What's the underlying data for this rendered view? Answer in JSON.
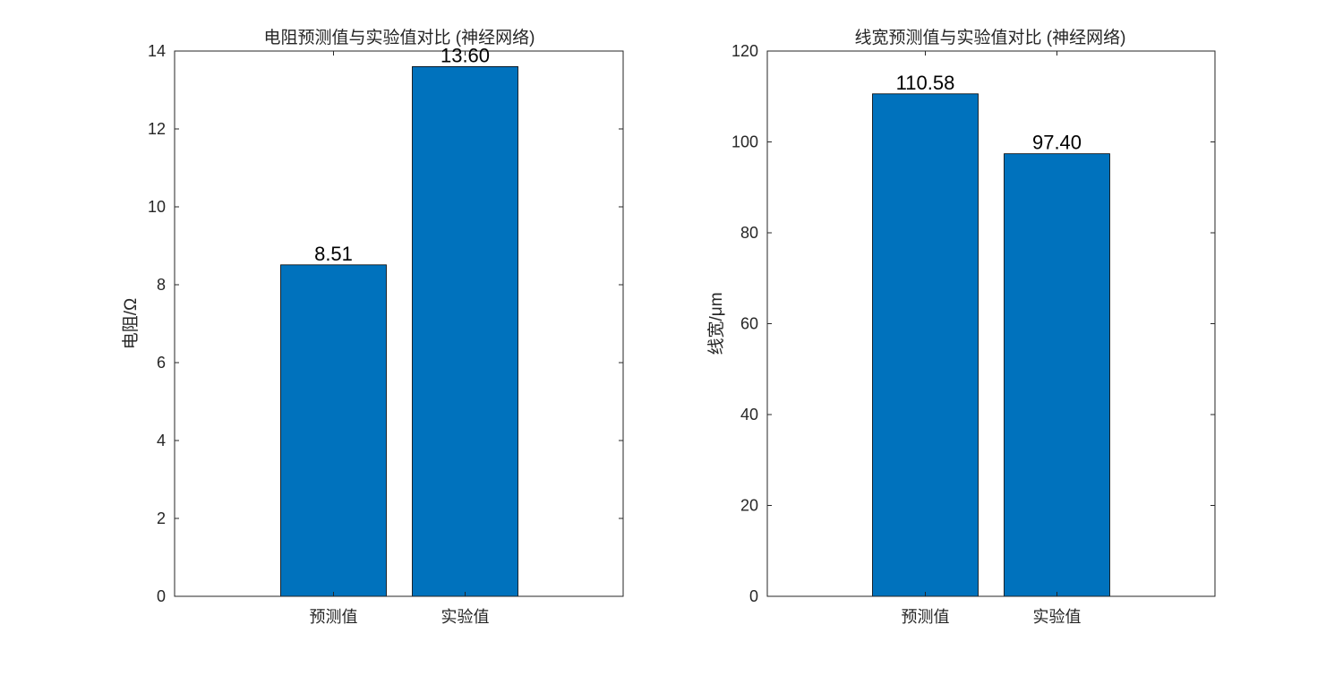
{
  "colors": {
    "bar": "#0072BD",
    "axis": "#262626",
    "background": "#ffffff"
  },
  "chart_data": [
    {
      "type": "bar",
      "title": "电阻预测值与实验值对比 (神经网络)",
      "xlabel": "",
      "ylabel": "电阻/Ω",
      "categories": [
        "预测值",
        "实验值"
      ],
      "values": [
        8.51,
        13.6
      ],
      "value_labels": [
        "8.51",
        "13.60"
      ],
      "ylim": [
        0,
        14
      ],
      "yticks": [
        0,
        2,
        4,
        6,
        8,
        10,
        12,
        14
      ],
      "ytick_labels": [
        "0",
        "2",
        "4",
        "6",
        "8",
        "10",
        "12",
        "14"
      ],
      "grid": false,
      "legend": "none"
    },
    {
      "type": "bar",
      "title": "线宽预测值与实验值对比 (神经网络)",
      "xlabel": "",
      "ylabel": "线宽/μm",
      "categories": [
        "预测值",
        "实验值"
      ],
      "values": [
        110.58,
        97.4
      ],
      "value_labels": [
        "110.58",
        "97.40"
      ],
      "ylim": [
        0,
        120
      ],
      "yticks": [
        0,
        20,
        40,
        60,
        80,
        100,
        120
      ],
      "ytick_labels": [
        "0",
        "20",
        "40",
        "60",
        "80",
        "100",
        "120"
      ],
      "grid": false,
      "legend": "none"
    }
  ]
}
